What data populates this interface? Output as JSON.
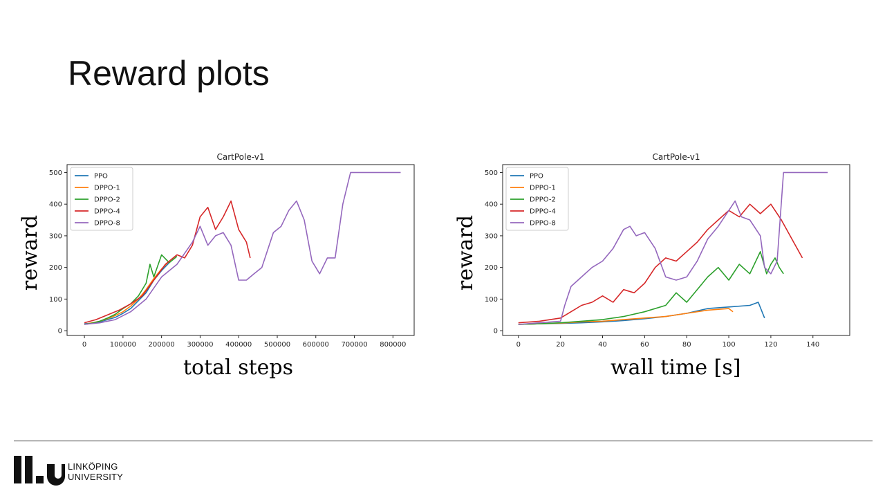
{
  "slide": {
    "title": "Reward plots",
    "footer": {
      "org_line1": "LINKÖPING",
      "org_line2": "UNIVERSITY"
    }
  },
  "chart_data": [
    {
      "type": "line",
      "title": "CartPole-v1",
      "xlabel": "total steps",
      "ylabel": "reward",
      "xlim": [
        -45000,
        855000
      ],
      "ylim": [
        -15,
        525
      ],
      "xticks": [
        0,
        100000,
        200000,
        300000,
        400000,
        500000,
        600000,
        700000,
        800000
      ],
      "yticks": [
        0,
        100,
        200,
        300,
        400,
        500
      ],
      "legend_position": "upper-left",
      "grid": false,
      "series": [
        {
          "name": "PPO",
          "color": "#1f77b4",
          "x": [
            0,
            20000,
            40000,
            60000,
            80000,
            100000,
            120000,
            140000,
            160000,
            180000,
            200000,
            220000
          ],
          "y": [
            22,
            24,
            28,
            35,
            42,
            55,
            70,
            95,
            120,
            160,
            190,
            215
          ]
        },
        {
          "name": "DPPO-1",
          "color": "#ff7f0e",
          "x": [
            0,
            20000,
            40000,
            60000,
            80000,
            100000,
            120000,
            140000,
            160000,
            180000,
            200000,
            220000
          ],
          "y": [
            20,
            25,
            30,
            38,
            48,
            60,
            78,
            100,
            130,
            165,
            195,
            220
          ]
        },
        {
          "name": "DPPO-2",
          "color": "#2ca02c",
          "x": [
            0,
            20000,
            40000,
            60000,
            80000,
            100000,
            120000,
            140000,
            160000,
            170000,
            180000,
            200000,
            220000,
            240000
          ],
          "y": [
            20,
            24,
            30,
            40,
            52,
            70,
            85,
            110,
            150,
            210,
            170,
            240,
            215,
            235
          ]
        },
        {
          "name": "DPPO-4",
          "color": "#d62728",
          "x": [
            0,
            30000,
            60000,
            90000,
            120000,
            150000,
            180000,
            210000,
            240000,
            260000,
            280000,
            300000,
            320000,
            340000,
            360000,
            380000,
            400000,
            420000,
            430000
          ],
          "y": [
            25,
            35,
            50,
            65,
            85,
            110,
            160,
            210,
            240,
            230,
            270,
            360,
            390,
            320,
            360,
            410,
            320,
            280,
            230
          ]
        },
        {
          "name": "DPPO-8",
          "color": "#9467bd",
          "x": [
            0,
            40000,
            80000,
            120000,
            160000,
            200000,
            240000,
            280000,
            300000,
            320000,
            340000,
            360000,
            380000,
            400000,
            420000,
            440000,
            460000,
            490000,
            510000,
            530000,
            550000,
            570000,
            590000,
            610000,
            630000,
            650000,
            670000,
            690000,
            720000,
            760000,
            820000
          ],
          "y": [
            20,
            25,
            35,
            60,
            100,
            170,
            210,
            280,
            330,
            270,
            300,
            310,
            270,
            160,
            160,
            180,
            200,
            310,
            330,
            380,
            410,
            350,
            220,
            180,
            230,
            230,
            400,
            500,
            500,
            500,
            500
          ]
        }
      ]
    },
    {
      "type": "line",
      "title": "CartPole-v1",
      "xlabel": "wall time [s]",
      "ylabel": "reward",
      "xlim": [
        -7.5,
        157.5
      ],
      "ylim": [
        -15,
        525
      ],
      "xticks": [
        0,
        20,
        40,
        60,
        80,
        100,
        120,
        140
      ],
      "yticks": [
        0,
        100,
        200,
        300,
        400,
        500
      ],
      "legend_position": "upper-left",
      "grid": false,
      "series": [
        {
          "name": "PPO",
          "color": "#1f77b4",
          "x": [
            0,
            10,
            20,
            30,
            40,
            50,
            60,
            70,
            80,
            90,
            100,
            110,
            114,
            117
          ],
          "y": [
            20,
            22,
            23,
            25,
            28,
            32,
            38,
            45,
            55,
            70,
            75,
            80,
            90,
            40
          ]
        },
        {
          "name": "DPPO-1",
          "color": "#ff7f0e",
          "x": [
            0,
            10,
            20,
            30,
            40,
            50,
            60,
            70,
            80,
            90,
            100,
            102
          ],
          "y": [
            20,
            22,
            24,
            28,
            30,
            35,
            40,
            45,
            55,
            65,
            70,
            60
          ]
        },
        {
          "name": "DPPO-2",
          "color": "#2ca02c",
          "x": [
            0,
            10,
            20,
            30,
            40,
            50,
            60,
            70,
            75,
            80,
            85,
            90,
            95,
            100,
            105,
            110,
            115,
            118,
            120,
            122,
            124,
            126
          ],
          "y": [
            20,
            22,
            25,
            30,
            35,
            45,
            60,
            80,
            120,
            90,
            130,
            170,
            200,
            160,
            210,
            180,
            250,
            180,
            210,
            230,
            200,
            180
          ]
        },
        {
          "name": "DPPO-4",
          "color": "#d62728",
          "x": [
            0,
            10,
            20,
            25,
            30,
            35,
            40,
            45,
            50,
            55,
            60,
            65,
            70,
            75,
            80,
            85,
            90,
            95,
            100,
            105,
            110,
            115,
            120,
            125,
            130,
            135
          ],
          "y": [
            25,
            30,
            40,
            60,
            80,
            90,
            110,
            90,
            130,
            120,
            150,
            200,
            230,
            220,
            250,
            280,
            320,
            350,
            380,
            360,
            400,
            370,
            400,
            350,
            290,
            230
          ]
        },
        {
          "name": "DPPO-8",
          "color": "#9467bd",
          "x": [
            0,
            10,
            20,
            22,
            25,
            30,
            35,
            40,
            45,
            50,
            53,
            56,
            60,
            65,
            70,
            75,
            80,
            85,
            90,
            95,
            100,
            103,
            106,
            110,
            115,
            117,
            120,
            123,
            126,
            130,
            140,
            147
          ],
          "y": [
            20,
            25,
            30,
            80,
            140,
            170,
            200,
            220,
            260,
            320,
            330,
            300,
            310,
            260,
            170,
            160,
            170,
            220,
            290,
            330,
            380,
            410,
            360,
            350,
            300,
            200,
            180,
            220,
            500,
            500,
            500,
            500
          ]
        }
      ]
    }
  ]
}
